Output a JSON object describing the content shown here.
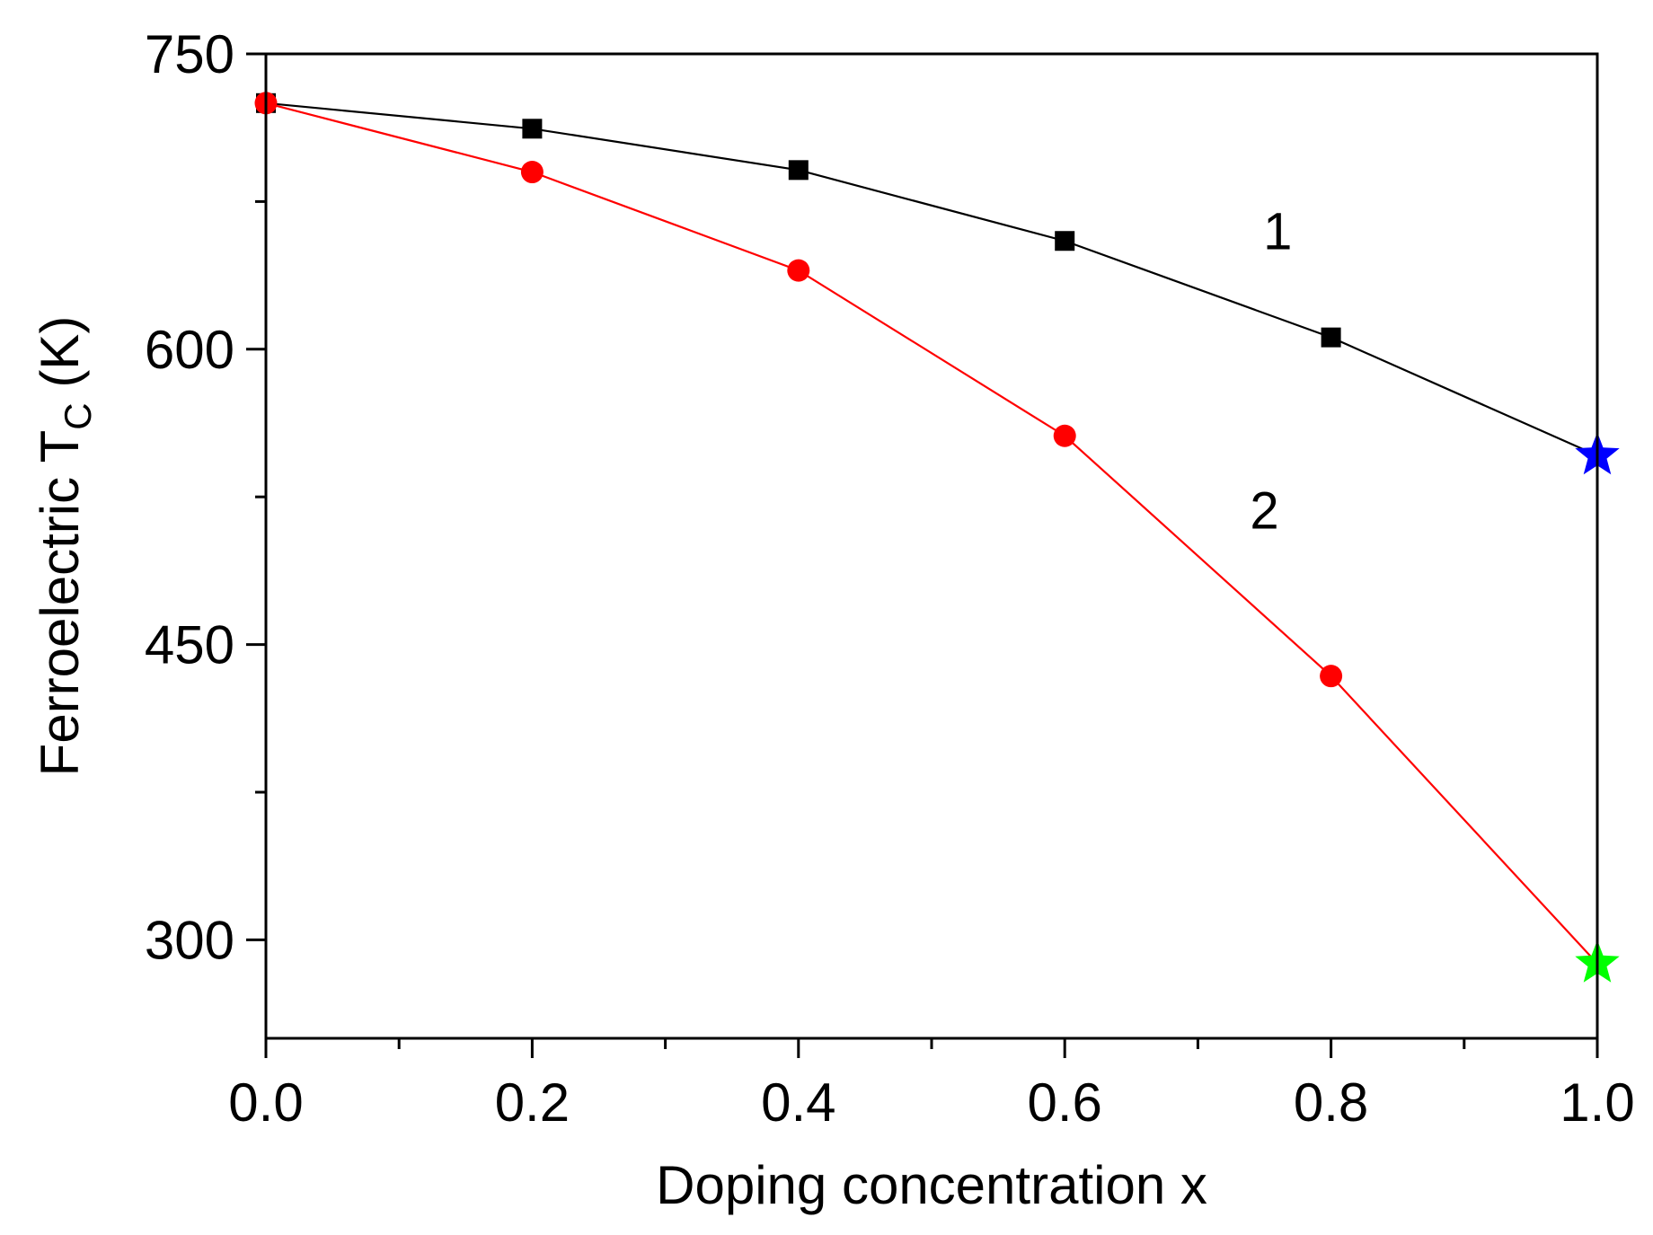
{
  "chart_data": {
    "type": "line",
    "title": "",
    "xlabel": "Doping concentration x",
    "ylabel": {
      "main": "Ferroelectric T",
      "subscript": "C",
      "unit": " (K)"
    },
    "xlim": [
      0.0,
      1.0
    ],
    "ylim": [
      250,
      750
    ],
    "xticks": [
      0.0,
      0.2,
      0.4,
      0.6,
      0.8,
      1.0
    ],
    "xtick_labels": [
      "0.0",
      "0.2",
      "0.4",
      "0.6",
      "0.8",
      "1.0"
    ],
    "x_minor_ticks": [
      0.1,
      0.3,
      0.5,
      0.7,
      0.9
    ],
    "yticks": [
      300,
      450,
      600,
      750
    ],
    "ytick_labels": [
      "300",
      "450",
      "600",
      "750"
    ],
    "y_minor_ticks": [
      375,
      525,
      675
    ],
    "grid": false,
    "series": [
      {
        "name": "1",
        "color": "#000000",
        "marker": "square",
        "x": [
          0.0,
          0.2,
          0.4,
          0.6,
          0.8
        ],
        "y": [
          725,
          712,
          691,
          655,
          606
        ]
      },
      {
        "name": "2",
        "color": "#ff0000",
        "marker": "circle",
        "x": [
          0.0,
          0.2,
          0.4,
          0.6,
          0.8
        ],
        "y": [
          725,
          690,
          640,
          556,
          434
        ]
      }
    ],
    "line_segments": [
      {
        "series": "1",
        "color": "#000000",
        "x": [
          0.0,
          0.2,
          0.4,
          0.6,
          0.8,
          1.0
        ],
        "y": [
          725,
          712,
          691,
          655,
          606,
          546
        ]
      },
      {
        "series": "2",
        "color": "#ff0000",
        "x": [
          0.0,
          0.2,
          0.4,
          0.6,
          0.8,
          1.0
        ],
        "y": [
          725,
          690,
          640,
          556,
          434,
          288
        ]
      }
    ],
    "star_points": [
      {
        "x": 1.0,
        "y": 546,
        "color": "#0000ff"
      },
      {
        "x": 1.0,
        "y": 288,
        "color": "#00ff00"
      }
    ],
    "annotations": [
      {
        "text": "1",
        "x": 0.76,
        "y": 660
      },
      {
        "text": "2",
        "x": 0.75,
        "y": 518
      }
    ]
  }
}
